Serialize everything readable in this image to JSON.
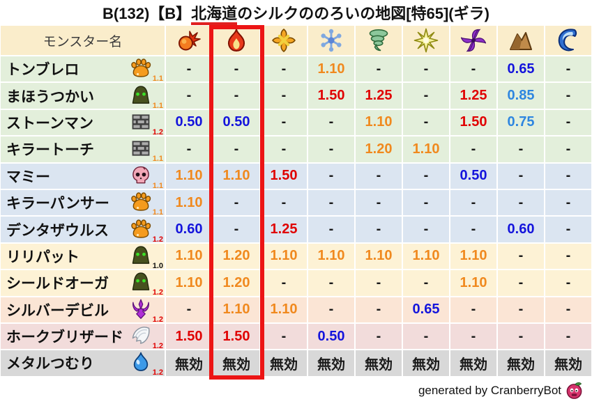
{
  "title": {
    "part1": "B(132)【B】",
    "underlined": "北海道",
    "part2": "のシルクののろいの地図[特65](ギラ)"
  },
  "table": {
    "monster_col_label": "モンスター名",
    "element_columns": [
      {
        "name": "fireball"
      },
      {
        "name": "flame",
        "highlighted": true
      },
      {
        "name": "explosion"
      },
      {
        "name": "snowflake"
      },
      {
        "name": "tornado"
      },
      {
        "name": "starburst"
      },
      {
        "name": "pinwheel"
      },
      {
        "name": "mountain"
      },
      {
        "name": "wave"
      }
    ],
    "rows": [
      {
        "name": "トンブレロ",
        "icon": "paw",
        "mult": "1.1",
        "mult_color": "orange",
        "band": "green",
        "cells": [
          {
            "v": "-",
            "c": "black"
          },
          {
            "v": "-",
            "c": "black"
          },
          {
            "v": "-",
            "c": "black"
          },
          {
            "v": "1.10",
            "c": "orange"
          },
          {
            "v": "-",
            "c": "black"
          },
          {
            "v": "-",
            "c": "black"
          },
          {
            "v": "-",
            "c": "black"
          },
          {
            "v": "0.65",
            "c": "blue"
          },
          {
            "v": "-",
            "c": "black"
          }
        ]
      },
      {
        "name": "まほうつかい",
        "icon": "hood",
        "mult": "1.1",
        "mult_color": "orange",
        "band": "green",
        "cells": [
          {
            "v": "-",
            "c": "black"
          },
          {
            "v": "-",
            "c": "black"
          },
          {
            "v": "-",
            "c": "black"
          },
          {
            "v": "1.50",
            "c": "red"
          },
          {
            "v": "1.25",
            "c": "red"
          },
          {
            "v": "-",
            "c": "black"
          },
          {
            "v": "1.25",
            "c": "red"
          },
          {
            "v": "0.85",
            "c": "lightblue"
          },
          {
            "v": "-",
            "c": "black"
          }
        ]
      },
      {
        "name": "ストーンマン",
        "icon": "bricks",
        "mult": "1.2",
        "mult_color": "red",
        "band": "green",
        "cells": [
          {
            "v": "0.50",
            "c": "blue"
          },
          {
            "v": "0.50",
            "c": "blue"
          },
          {
            "v": "-",
            "c": "black"
          },
          {
            "v": "-",
            "c": "black"
          },
          {
            "v": "1.10",
            "c": "orange"
          },
          {
            "v": "-",
            "c": "black"
          },
          {
            "v": "1.50",
            "c": "red"
          },
          {
            "v": "0.75",
            "c": "lightblue"
          },
          {
            "v": "-",
            "c": "black"
          }
        ]
      },
      {
        "name": "キラートーチ",
        "icon": "bricks",
        "mult": "1.1",
        "mult_color": "orange",
        "band": "green",
        "cells": [
          {
            "v": "-",
            "c": "black"
          },
          {
            "v": "-",
            "c": "black"
          },
          {
            "v": "-",
            "c": "black"
          },
          {
            "v": "-",
            "c": "black"
          },
          {
            "v": "1.20",
            "c": "orange"
          },
          {
            "v": "1.10",
            "c": "orange"
          },
          {
            "v": "-",
            "c": "black"
          },
          {
            "v": "-",
            "c": "black"
          },
          {
            "v": "-",
            "c": "black"
          }
        ]
      },
      {
        "name": "マミー",
        "icon": "skull",
        "mult": "1.1",
        "mult_color": "orange",
        "band": "blue",
        "cells": [
          {
            "v": "1.10",
            "c": "orange"
          },
          {
            "v": "1.10",
            "c": "orange"
          },
          {
            "v": "1.50",
            "c": "red"
          },
          {
            "v": "-",
            "c": "black"
          },
          {
            "v": "-",
            "c": "black"
          },
          {
            "v": "-",
            "c": "black"
          },
          {
            "v": "0.50",
            "c": "blue"
          },
          {
            "v": "-",
            "c": "black"
          },
          {
            "v": "-",
            "c": "black"
          }
        ]
      },
      {
        "name": "キラーパンサー",
        "icon": "paw",
        "mult": "1.1",
        "mult_color": "orange",
        "band": "blue",
        "cells": [
          {
            "v": "1.10",
            "c": "orange"
          },
          {
            "v": "-",
            "c": "black"
          },
          {
            "v": "-",
            "c": "black"
          },
          {
            "v": "-",
            "c": "black"
          },
          {
            "v": "-",
            "c": "black"
          },
          {
            "v": "-",
            "c": "black"
          },
          {
            "v": "-",
            "c": "black"
          },
          {
            "v": "-",
            "c": "black"
          },
          {
            "v": "-",
            "c": "black"
          }
        ]
      },
      {
        "name": "デンタザウルス",
        "icon": "paw",
        "mult": "1.2",
        "mult_color": "red",
        "band": "blue",
        "cells": [
          {
            "v": "0.60",
            "c": "blue"
          },
          {
            "v": "-",
            "c": "black"
          },
          {
            "v": "1.25",
            "c": "red"
          },
          {
            "v": "-",
            "c": "black"
          },
          {
            "v": "-",
            "c": "black"
          },
          {
            "v": "-",
            "c": "black"
          },
          {
            "v": "-",
            "c": "black"
          },
          {
            "v": "0.60",
            "c": "blue"
          },
          {
            "v": "-",
            "c": "black"
          }
        ]
      },
      {
        "name": "リリパット",
        "icon": "hood",
        "mult": "1.0",
        "mult_color": "black",
        "band": "cream",
        "cells": [
          {
            "v": "1.10",
            "c": "orange"
          },
          {
            "v": "1.20",
            "c": "orange"
          },
          {
            "v": "1.10",
            "c": "orange"
          },
          {
            "v": "1.10",
            "c": "orange"
          },
          {
            "v": "1.10",
            "c": "orange"
          },
          {
            "v": "1.10",
            "c": "orange"
          },
          {
            "v": "1.10",
            "c": "orange"
          },
          {
            "v": "-",
            "c": "black"
          },
          {
            "v": "-",
            "c": "black"
          }
        ]
      },
      {
        "name": "シールドオーガ",
        "icon": "hood",
        "mult": "1.2",
        "mult_color": "red",
        "band": "cream",
        "cells": [
          {
            "v": "1.10",
            "c": "orange"
          },
          {
            "v": "1.20",
            "c": "orange"
          },
          {
            "v": "-",
            "c": "black"
          },
          {
            "v": "-",
            "c": "black"
          },
          {
            "v": "-",
            "c": "black"
          },
          {
            "v": "-",
            "c": "black"
          },
          {
            "v": "1.10",
            "c": "orange"
          },
          {
            "v": "-",
            "c": "black"
          },
          {
            "v": "-",
            "c": "black"
          }
        ]
      },
      {
        "name": "シルバーデビル",
        "icon": "trident",
        "mult": "1.2",
        "mult_color": "red",
        "band": "peach",
        "cells": [
          {
            "v": "-",
            "c": "black"
          },
          {
            "v": "1.10",
            "c": "orange"
          },
          {
            "v": "1.10",
            "c": "orange"
          },
          {
            "v": "-",
            "c": "black"
          },
          {
            "v": "-",
            "c": "black"
          },
          {
            "v": "0.65",
            "c": "blue"
          },
          {
            "v": "-",
            "c": "black"
          },
          {
            "v": "-",
            "c": "black"
          },
          {
            "v": "-",
            "c": "black"
          }
        ]
      },
      {
        "name": "ホークブリザード",
        "icon": "wing",
        "mult": "1.2",
        "mult_color": "red",
        "band": "pink",
        "cells": [
          {
            "v": "1.50",
            "c": "red"
          },
          {
            "v": "1.50",
            "c": "red"
          },
          {
            "v": "-",
            "c": "black"
          },
          {
            "v": "0.50",
            "c": "blue"
          },
          {
            "v": "-",
            "c": "black"
          },
          {
            "v": "-",
            "c": "black"
          },
          {
            "v": "-",
            "c": "black"
          },
          {
            "v": "-",
            "c": "black"
          },
          {
            "v": "-",
            "c": "black"
          }
        ]
      },
      {
        "name": "メタルつむり",
        "icon": "slime",
        "mult": "1.2",
        "mult_color": "red",
        "band": "gray",
        "cells": [
          {
            "v": "無効",
            "c": "black"
          },
          {
            "v": "無効",
            "c": "black"
          },
          {
            "v": "無効",
            "c": "black"
          },
          {
            "v": "無効",
            "c": "black"
          },
          {
            "v": "無効",
            "c": "black"
          },
          {
            "v": "無効",
            "c": "black"
          },
          {
            "v": "無効",
            "c": "black"
          },
          {
            "v": "無効",
            "c": "black"
          },
          {
            "v": "無効",
            "c": "black"
          }
        ]
      }
    ]
  },
  "highlight_box": {
    "column": "flame",
    "color": "#ec1515"
  },
  "footer": {
    "text": "generated by CranberryBot",
    "icon": "cranberry"
  },
  "colors": {
    "value_orange": "#f0891e",
    "value_red": "#e00000",
    "value_blue": "#1414dc",
    "value_lightblue": "#2e86e0",
    "header_bg": "#faedcb",
    "band_green": "#e3efdb",
    "band_blue": "#dbe5f1",
    "band_cream": "#fdf2d5",
    "band_peach": "#fbe5d5",
    "band_pink": "#f2dcdb",
    "band_gray": "#d8d8d8"
  }
}
